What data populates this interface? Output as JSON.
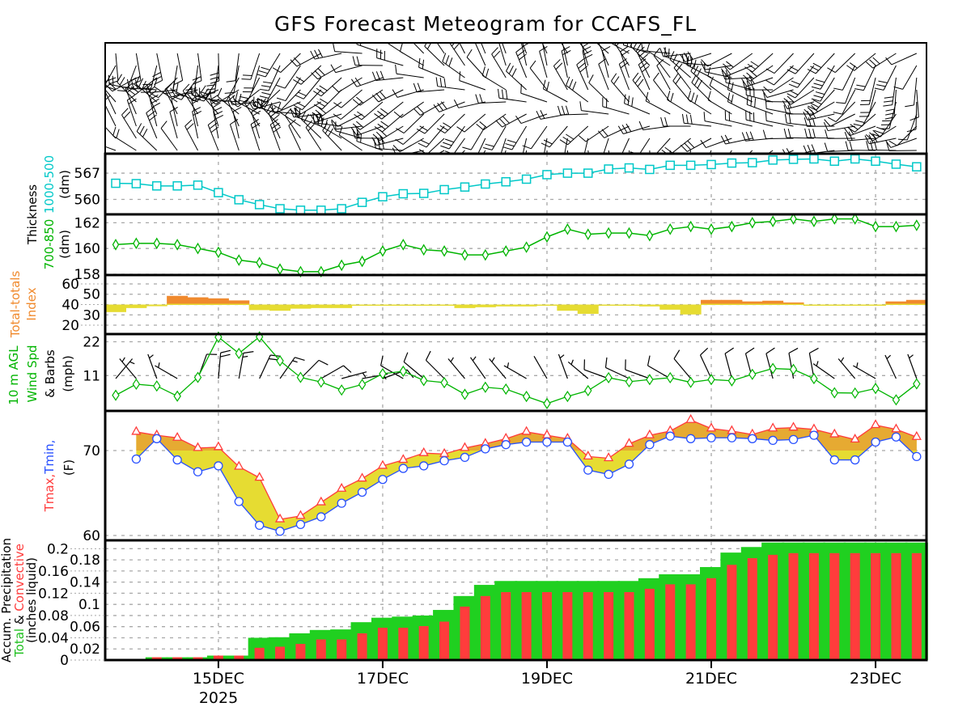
{
  "title": "GFS Forecast Meteogram for CCAFS_FL",
  "colors": {
    "thickness_1000_500": "#00c8c8",
    "thickness_700_850": "#00b400",
    "tt_high": "#f08a2e",
    "tt_low": "#e6dc32",
    "wind": "#00b400",
    "tmax": "#ff3c3c",
    "tmin": "#2850ff",
    "fill_warm": "#e6aa32",
    "fill_cool": "#e6dc32",
    "precip_total": "#20d020",
    "precip_conv": "#ff3c3c",
    "grid": "#a8a8a8"
  },
  "labels": {
    "thickness": "Thickness",
    "thk_1000_500": "1000-500",
    "thk_700_850": "700-850",
    "dm": "(dm)",
    "tt1": "Total-totals",
    "tt2": "Index",
    "wind1": "10 m AGL",
    "wind2": "Wind Spd",
    "wind3": "& Barbs",
    "wind4": "(mph)",
    "tmax": "Tmax,",
    "tmin": "Tmin,",
    "temp_unit": "(F)",
    "precip1": "Accum. Precipitation",
    "precip_total": "Total",
    "precip_amp": " & ",
    "precip_conv": "Convective",
    "precip_unit": "(inches liquid)"
  },
  "x_axis": {
    "dates": [
      {
        "label": "15DEC",
        "index": 5
      },
      {
        "label": "17DEC",
        "index": 13
      },
      {
        "label": "19DEC",
        "index": 21
      },
      {
        "label": "21DEC",
        "index": 29
      },
      {
        "label": "23DEC",
        "index": 37
      }
    ],
    "year": "2025",
    "step_hours": 6
  },
  "chart_data": [
    {
      "type": "line",
      "title": "Thickness 1000-500",
      "ylabel": "(dm)",
      "ylim": [
        556.0,
        572.2
      ],
      "ticks": [
        "567",
        "560"
      ],
      "tick_values": [
        567,
        560
      ],
      "values": [
        564.3,
        564.2,
        563.6,
        563.6,
        563.8,
        561.8,
        559.9,
        558.6,
        557.5,
        557.1,
        557.1,
        557.5,
        559.2,
        560.7,
        561.5,
        561.6,
        562.6,
        563.3,
        564.1,
        564.7,
        565.4,
        566.6,
        567.0,
        567.0,
        568.1,
        568.4,
        568.0,
        569.1,
        569.1,
        569.3,
        569.7,
        569.8,
        570.5,
        570.7,
        570.8,
        570.2,
        570.8,
        570.2,
        569.4,
        568.7
      ]
    },
    {
      "type": "line",
      "title": "Thickness 700-850",
      "ylabel": "(dm)",
      "ylim": [
        157.94,
        162.65
      ],
      "ticks": [
        "162",
        "160",
        "158"
      ],
      "tick_values": [
        162,
        160,
        158
      ],
      "values": [
        160.3,
        160.4,
        160.4,
        160.3,
        160.0,
        159.7,
        159.1,
        158.9,
        158.4,
        158.2,
        158.2,
        158.7,
        159.0,
        159.8,
        160.3,
        159.9,
        159.8,
        159.5,
        159.5,
        159.8,
        160.1,
        160.9,
        161.5,
        161.1,
        161.2,
        161.2,
        161.0,
        161.5,
        161.7,
        161.5,
        161.7,
        162.0,
        162.1,
        162.3,
        162.1,
        162.3,
        162.3,
        161.7,
        161.7,
        161.8
      ]
    },
    {
      "type": "bar",
      "title": "Total-totals Index",
      "ylim": [
        11.4,
        68.6
      ],
      "baseline": 40,
      "ticks": [
        "60",
        "50",
        "40",
        "30",
        "20"
      ],
      "tick_values": [
        60,
        50,
        40,
        30,
        20
      ],
      "values": [
        32.7,
        36.6,
        38.4,
        48.4,
        47,
        46,
        44,
        34.6,
        34,
        36,
        36.6,
        36.6,
        39,
        39.5,
        39.5,
        39,
        39,
        36.6,
        37.4,
        38.2,
        38.2,
        39,
        34,
        31,
        39.6,
        39.8,
        38.2,
        35,
        30.4,
        44.5,
        44.5,
        43,
        43.7,
        42,
        39.8,
        39.8,
        39.8,
        39.8,
        43,
        44.5
      ]
    },
    {
      "type": "line",
      "title": "10 m AGL Wind Spd & Barbs",
      "ylabel": "(mph)",
      "ylim": [
        -0.5,
        24.5
      ],
      "ticks": [
        "22",
        "11"
      ],
      "tick_values": [
        22,
        11
      ],
      "values": [
        4.6,
        8.2,
        7.6,
        4.3,
        10.4,
        23.5,
        18.2,
        23.6,
        15.8,
        10.4,
        8.9,
        6.3,
        8.1,
        11.6,
        12.4,
        9.4,
        8.7,
        4.9,
        7.2,
        6.6,
        4.2,
        1.9,
        4.2,
        6.1,
        10.3,
        9.0,
        9.7,
        10.3,
        8.8,
        9.7,
        9.3,
        11.4,
        13.3,
        13.0,
        10.0,
        5.4,
        5.3,
        6.8,
        3.1,
        8.3
      ],
      "direction_deg": [
        40,
        320,
        340,
        300,
        20,
        5,
        10,
        25,
        35,
        45,
        60,
        75,
        80,
        70,
        300,
        310,
        315,
        320,
        325,
        320,
        300,
        330,
        340,
        310,
        290,
        295,
        290,
        300,
        320,
        335,
        345,
        345,
        345,
        350,
        350,
        305,
        320,
        300,
        335,
        340
      ]
    },
    {
      "type": "line",
      "title": "Tmax, Tmin",
      "ylabel": "(F)",
      "ylim": [
        59.43,
        74.67
      ],
      "ticks": [
        "70",
        "60"
      ],
      "tick_values": [
        70,
        60
      ],
      "threshold": 70,
      "series": [
        {
          "name": "Tmax",
          "values": [
            null,
            72.2,
            71.8,
            71.5,
            70.3,
            70.4,
            68.1,
            66.8,
            61.9,
            62.3,
            63.9,
            65.5,
            66.7,
            68.2,
            68.9,
            69.7,
            69.6,
            70.3,
            70.8,
            71.4,
            72.2,
            71.8,
            71.4,
            69.3,
            69.1,
            70.8,
            71.8,
            72.3,
            73.6,
            72.6,
            72.3,
            71.9,
            72.6,
            72.7,
            72.5,
            71.9,
            71.3,
            73.0,
            72.5,
            71.6
          ]
        },
        {
          "name": "Tmin",
          "values": [
            null,
            69.0,
            71.4,
            68.9,
            67.5,
            68.2,
            64.0,
            61.2,
            60.5,
            61.3,
            62.2,
            63.8,
            65.1,
            66.6,
            67.9,
            68.2,
            68.8,
            69.2,
            70.2,
            70.7,
            71.0,
            71.0,
            71.0,
            67.7,
            67.2,
            68.4,
            70.7,
            71.7,
            71.4,
            71.5,
            71.5,
            71.4,
            71.2,
            71.3,
            71.8,
            68.9,
            68.9,
            71.0,
            71.6,
            69.3
          ]
        }
      ]
    },
    {
      "type": "bar",
      "title": "Accum. Precipitation Total & Convective",
      "ylabel": "(inches liquid)",
      "ylim": [
        0,
        0.215
      ],
      "ticks": [
        "0.2",
        "0.18",
        "0.16",
        "0.14",
        "0.12",
        "0.1",
        "0.08",
        "0.06",
        "0.04",
        "0.02",
        "0"
      ],
      "tick_values": [
        0.2,
        0.18,
        0.16,
        0.14,
        0.12,
        0.1,
        0.08,
        0.06,
        0.04,
        0.02,
        0
      ],
      "series": [
        {
          "name": "Total",
          "values": [
            0,
            0,
            0.005,
            0.005,
            0.005,
            0.008,
            0.008,
            0.04,
            0.041,
            0.048,
            0.054,
            0.055,
            0.068,
            0.076,
            0.078,
            0.08,
            0.09,
            0.115,
            0.135,
            0.142,
            0.142,
            0.142,
            0.142,
            0.142,
            0.142,
            0.142,
            0.147,
            0.154,
            0.154,
            0.167,
            0.193,
            0.203,
            0.211,
            0.211,
            0.211,
            0.211,
            0.211,
            0.211,
            0.211,
            0.211
          ]
        },
        {
          "name": "Convective",
          "values": [
            0,
            0,
            0.005,
            0.005,
            0.005,
            0.008,
            0.008,
            0.022,
            0.024,
            0.029,
            0.037,
            0.037,
            0.048,
            0.058,
            0.058,
            0.061,
            0.069,
            0.096,
            0.115,
            0.122,
            0.122,
            0.122,
            0.122,
            0.122,
            0.122,
            0.122,
            0.128,
            0.136,
            0.136,
            0.147,
            0.171,
            0.183,
            0.189,
            0.192,
            0.192,
            0.192,
            0.192,
            0.192,
            0.192,
            0.192
          ]
        }
      ]
    }
  ]
}
